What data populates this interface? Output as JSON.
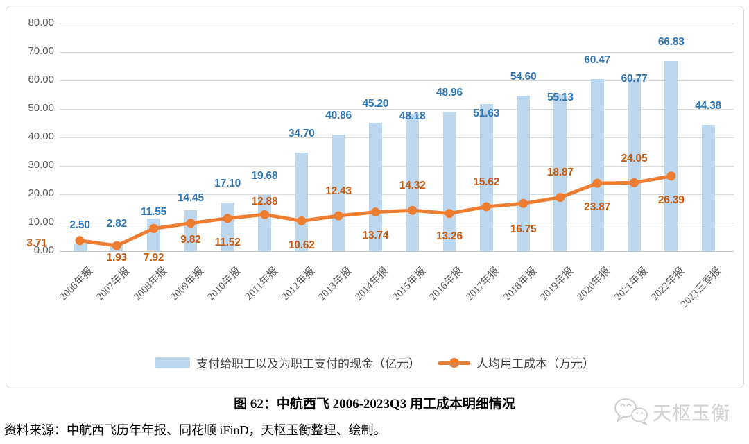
{
  "chart_data": {
    "type": "bar",
    "subtype": "combo-bar-line",
    "title": "图 62：中航西飞 2006-2023Q3 用工成本明细情况",
    "categories": [
      "2006年报",
      "2007年报",
      "2008年报",
      "2009年报",
      "2010年报",
      "2011年报",
      "2012年报",
      "2013年报",
      "2014年报",
      "2015年报",
      "2016年报",
      "2017年报",
      "2018年报",
      "2019年报",
      "2020年报",
      "2021年报",
      "2022年报",
      "2023三季报"
    ],
    "series": [
      {
        "name": "支付给职工以及为职工支付的现金（亿元）",
        "kind": "bar",
        "values": [
          2.5,
          2.82,
          11.55,
          14.45,
          17.1,
          19.68,
          34.7,
          40.86,
          45.2,
          48.18,
          48.96,
          51.63,
          54.6,
          55.13,
          60.47,
          60.77,
          66.83,
          44.38
        ]
      },
      {
        "name": "人均用工成本（万元）",
        "kind": "line",
        "values": [
          3.71,
          1.93,
          7.92,
          9.82,
          11.52,
          12.88,
          10.62,
          12.43,
          13.74,
          14.32,
          13.26,
          15.62,
          16.75,
          18.87,
          23.87,
          24.05,
          26.39,
          null
        ]
      }
    ],
    "ylim": [
      0,
      80
    ],
    "yticks": [
      "80.00",
      "70.00",
      "60.00",
      "50.00",
      "40.00",
      "30.00",
      "20.00",
      "10.00",
      "0.00"
    ],
    "grid": true,
    "legend_position": "bottom"
  },
  "caption": {
    "title": "图 62：中航西飞 2006-2023Q3 用工成本明细情况"
  },
  "source": {
    "text": "资料来源：中航西飞历年年报、同花顺 iFinD，天枢玉衡整理、绘制。"
  },
  "watermark": {
    "text": "天枢玉衡"
  },
  "colors": {
    "bar": "#BDD7EE",
    "line": "#ED7D31",
    "bar_label": "#2E75B6",
    "line_label": "#C55A11",
    "axis_text": "#595959",
    "grid": "#D9D9D9",
    "frame_border": "#D9D9D9",
    "legend_text": "#404040"
  }
}
